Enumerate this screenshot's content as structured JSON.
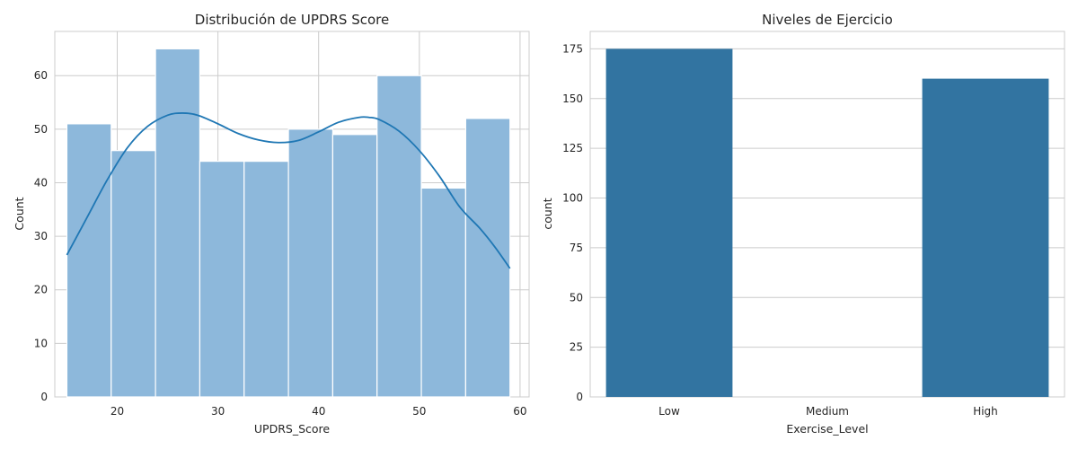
{
  "chart_data": [
    {
      "type": "bar",
      "subtype": "histogram with kde line",
      "title": "Distribución de UPDRS Score",
      "xlabel": "UPDRS_Score",
      "ylabel": "Count",
      "xlim": [
        13.8,
        60.9
      ],
      "ylim": [
        0,
        68.25
      ],
      "xticks": [
        20,
        30,
        40,
        50,
        60
      ],
      "yticks": [
        0,
        10,
        20,
        30,
        40,
        50,
        60
      ],
      "grid": true,
      "bar_color": "#8db8db",
      "line_color": "#1f77b4",
      "bins": [
        {
          "x0": 15.0,
          "x1": 19.4,
          "count": 51
        },
        {
          "x0": 19.4,
          "x1": 23.8,
          "count": 46
        },
        {
          "x0": 23.8,
          "x1": 28.2,
          "count": 65
        },
        {
          "x0": 28.2,
          "x1": 32.6,
          "count": 44
        },
        {
          "x0": 32.6,
          "x1": 37.0,
          "count": 44
        },
        {
          "x0": 37.0,
          "x1": 41.4,
          "count": 50
        },
        {
          "x0": 41.4,
          "x1": 45.8,
          "count": 49
        },
        {
          "x0": 45.8,
          "x1": 50.2,
          "count": 60
        },
        {
          "x0": 50.2,
          "x1": 54.6,
          "count": 39
        },
        {
          "x0": 54.6,
          "x1": 59.0,
          "count": 52
        }
      ],
      "kde": {
        "x": [
          15,
          17,
          19,
          21,
          23,
          25,
          26.5,
          28,
          30,
          32,
          34,
          36,
          38,
          40,
          42,
          44,
          45,
          46,
          48,
          50,
          52,
          54,
          56,
          57.5,
          59
        ],
        "y": [
          26.5,
          33.5,
          40.5,
          46.5,
          50.5,
          52.6,
          53.0,
          52.6,
          51.0,
          49.2,
          48.0,
          47.5,
          47.9,
          49.5,
          51.3,
          52.2,
          52.2,
          51.8,
          49.6,
          46.0,
          41.2,
          35.5,
          31.5,
          28.0,
          24.0
        ]
      }
    },
    {
      "type": "bar",
      "title": "Niveles de Ejercicio",
      "xlabel": "Exercise_Level",
      "ylabel": "count",
      "categories": [
        "Low",
        "Medium",
        "High"
      ],
      "values": [
        175,
        0,
        160
      ],
      "ylim": [
        0,
        183.75
      ],
      "yticks": [
        0,
        25,
        50,
        75,
        100,
        125,
        150,
        175
      ],
      "grid": true,
      "bar_color": "#3274a1"
    }
  ]
}
